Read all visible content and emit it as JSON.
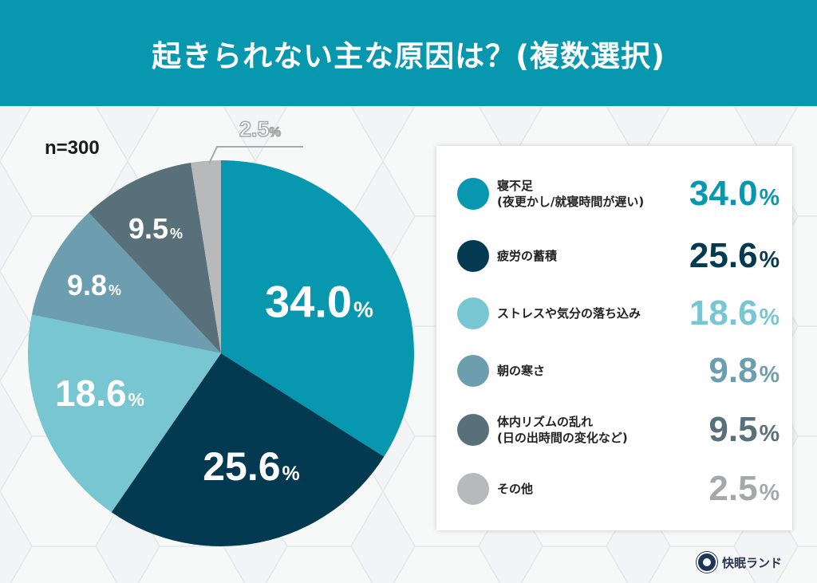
{
  "header": {
    "title": "起きられない主な原因は？(複数選択)"
  },
  "sample_size": "n=300",
  "brand": {
    "name": "快眠ランド",
    "logo_icon": "sleep-brand-logo-icon"
  },
  "colors": {
    "title_bar": "#0797ae",
    "slice_1": "#0797ae",
    "slice_2": "#033a52",
    "slice_3": "#77c6d2",
    "slice_4": "#6c9eaf",
    "slice_5": "#587079",
    "slice_6": "#b8b9bb"
  },
  "pie_labels": [
    {
      "value": "34.0",
      "pct": "%"
    },
    {
      "value": "25.6",
      "pct": "%"
    },
    {
      "value": "18.6",
      "pct": "%"
    },
    {
      "value": "9.8",
      "pct": "%"
    },
    {
      "value": "9.5",
      "pct": "%"
    },
    {
      "value": "2.5",
      "pct": "%"
    }
  ],
  "legend": {
    "items": [
      {
        "line1": "寝不足",
        "line2": "(夜更かし/就寝時間が遅い)",
        "value": "34.0",
        "pct": "%"
      },
      {
        "line1": "疲労の蓄積",
        "line2": "",
        "value": "25.6",
        "pct": "%"
      },
      {
        "line1": "ストレスや気分の落ち込み",
        "line2": "",
        "value": "18.6",
        "pct": "%"
      },
      {
        "line1": "朝の寒さ",
        "line2": "",
        "value": "9.8",
        "pct": "%"
      },
      {
        "line1": "体内リズムの乱れ",
        "line2": "(日の出時間の変化など)",
        "value": "9.5",
        "pct": "%"
      },
      {
        "line1": "その他",
        "line2": "",
        "value": "2.5",
        "pct": "%"
      }
    ]
  },
  "chart_data": {
    "type": "pie",
    "title": "起きられない主な原因は？(複数選択)",
    "subtitle": "n=300",
    "categories": [
      "寝不足(夜更かし/就寝時間が遅い)",
      "疲労の蓄積",
      "ストレスや気分の落ち込み",
      "朝の寒さ",
      "体内リズムの乱れ(日の出時間の変化など)",
      "その他"
    ],
    "values": [
      34.0,
      25.6,
      18.6,
      9.8,
      9.5,
      2.5
    ],
    "unit": "%",
    "colors": [
      "#0797ae",
      "#033a52",
      "#77c6d2",
      "#6c9eaf",
      "#587079",
      "#b8b9bb"
    ],
    "start_angle": "12 o'clock",
    "direction": "clockwise",
    "legend_position": "right"
  }
}
